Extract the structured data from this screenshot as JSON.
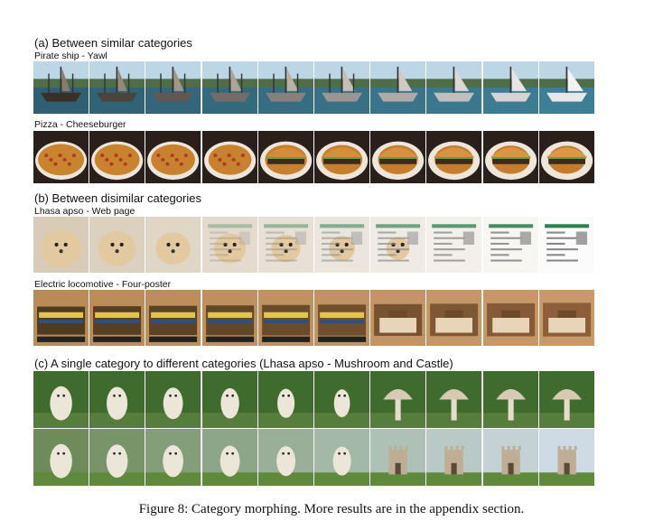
{
  "figure": {
    "sections": {
      "a": "(a) Between similar categories",
      "b": "(b) Between disimilar categories",
      "c": "(c) A single category to different categories (Lhasa apso - Mushroom and Castle)"
    },
    "rows": [
      {
        "label": "Pirate ship - Yawl",
        "kind": "ship",
        "frames": 10
      },
      {
        "label": "Pizza - Cheeseburger",
        "kind": "food",
        "frames": 10
      },
      {
        "label": "Lhasa apso - Web page",
        "kind": "web",
        "frames": 10
      },
      {
        "label": "Electric locomotive - Four-poster",
        "kind": "train",
        "frames": 10
      },
      {
        "label": "",
        "kind": "mushroom",
        "frames": 10
      },
      {
        "label": "",
        "kind": "castle",
        "frames": 10
      }
    ],
    "caption": "Figure 8:  Category morphing. More results are in the appendix section."
  }
}
